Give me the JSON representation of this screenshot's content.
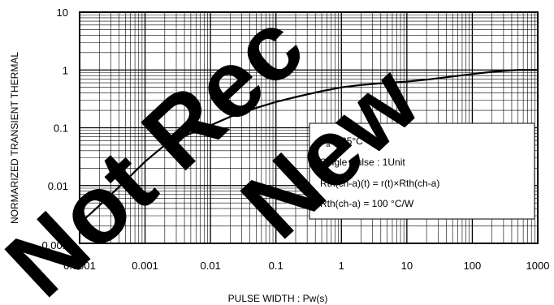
{
  "chart_data": {
    "type": "line",
    "title": "",
    "xlabel": "PULSE WIDTH : Pw(s)",
    "ylabel": "NORMARIZED TRANSIENT THERMAL",
    "x_scale": "log",
    "y_scale": "log",
    "xlim": [
      0.0001,
      1000
    ],
    "ylim": [
      0.001,
      10
    ],
    "grid": true,
    "x_ticks": [
      "0.0001",
      "0.001",
      "0.01",
      "0.1",
      "1",
      "10",
      "100",
      "1000"
    ],
    "y_ticks": [
      "10",
      "1",
      "0.1",
      "0.01",
      "0.001"
    ],
    "series": [
      {
        "x": [
          0.0001,
          0.0002,
          0.0005,
          0.001,
          0.002,
          0.005,
          0.01,
          0.02,
          0.05,
          0.1,
          0.2,
          0.5,
          1,
          2,
          5,
          10,
          20,
          50,
          100,
          200,
          500,
          1000
        ],
        "y": [
          0.0022,
          0.0045,
          0.012,
          0.026,
          0.05,
          0.08,
          0.11,
          0.155,
          0.22,
          0.28,
          0.34,
          0.43,
          0.5,
          0.55,
          0.6,
          0.63,
          0.68,
          0.77,
          0.85,
          0.93,
          1.0,
          1.0
        ]
      }
    ],
    "annotation": {
      "line1_main": "T",
      "line1_sub": "a",
      "line1_rest": " = 25°C",
      "line2": "Single Pulse : 1Unit",
      "line3": "Rth(ch-a)(t) = r(t)×Rth(ch-a)",
      "line4": "Rth(ch-a) = 100 °C/W"
    }
  },
  "watermark": {
    "left_text": "Not Rec",
    "right_text": "New"
  }
}
